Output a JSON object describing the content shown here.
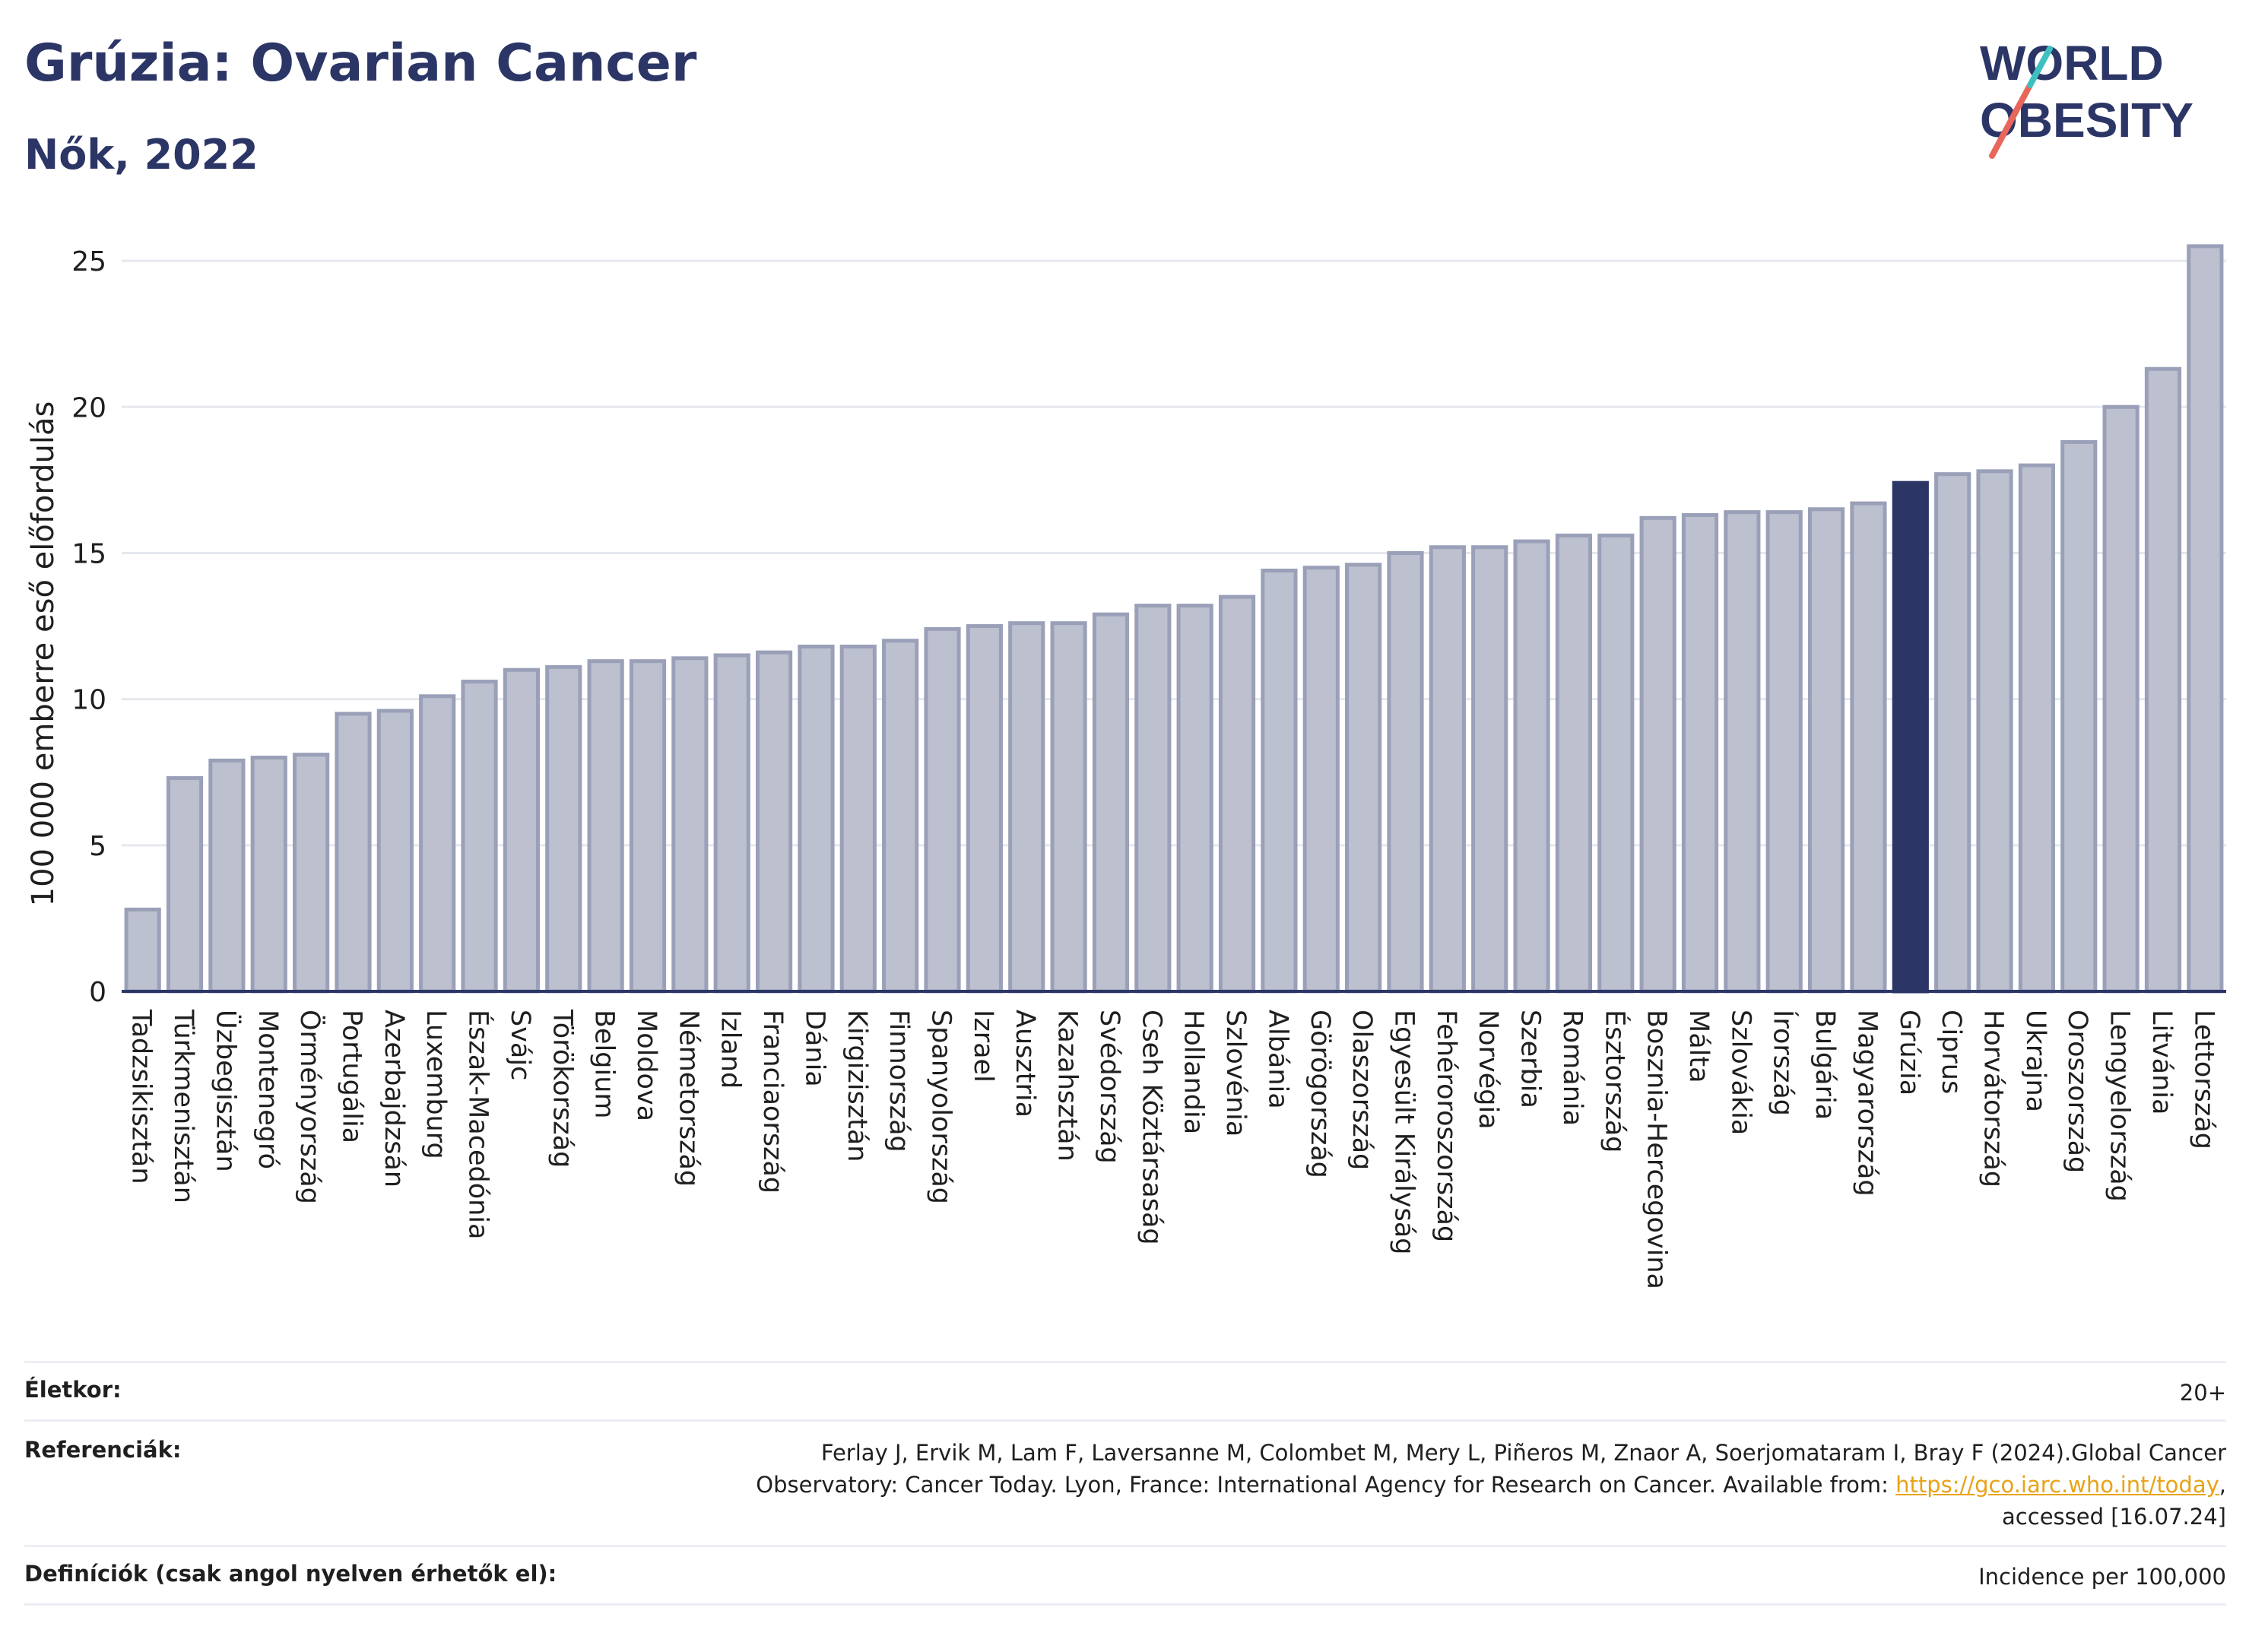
{
  "header": {
    "title": "Grúzia: Ovarian Cancer",
    "subtitle": "Nők, 2022"
  },
  "logo": {
    "line1": "WORLD",
    "line2": "OBESITY",
    "accent_colors": [
      "#e8665a",
      "#3ec0c0"
    ]
  },
  "colors": {
    "bar": "#bcc0cf",
    "bar_edge": "#9aa0b8",
    "highlight": "#2b3566",
    "axis_text": "#1f1f1f",
    "grid": "#e6e8ef"
  },
  "chart_data": {
    "type": "bar",
    "title": "",
    "ylabel": "100 000 emberre eső előfordulás",
    "ylim": [
      0,
      25.6
    ],
    "yticks": [
      0,
      5,
      10,
      15,
      20,
      25
    ],
    "highlight": "Grúzia",
    "grid": true,
    "categories": [
      "Tadzsikisztán",
      "Türkmenisztán",
      "Üzbegisztán",
      "Montenegró",
      "Örményország",
      "Portugália",
      "Azerbajdzsán",
      "Luxemburg",
      "Észak-Macedónia",
      "Svájc",
      "Törökország",
      "Belgium",
      "Moldova",
      "Németország",
      "Izland",
      "Franciaország",
      "Dánia",
      "Kirgizisztán",
      "Finnország",
      "Spanyolország",
      "Izrael",
      "Ausztria",
      "Kazahsztán",
      "Svédország",
      "Cseh Köztársaság",
      "Hollandia",
      "Szlovénia",
      "Albánia",
      "Görögország",
      "Olaszország",
      "Egyesült Királyság",
      "Fehéroroszország",
      "Norvégia",
      "Szerbia",
      "Románia",
      "Észtország",
      "Bosznia-Hercegovina",
      "Málta",
      "Szlovákia",
      "Írország",
      "Bulgária",
      "Magyarország",
      "Grúzia",
      "Ciprus",
      "Horvátország",
      "Ukrajna",
      "Oroszország",
      "Lengyelország",
      "Litvánia",
      "Lettország"
    ],
    "values": [
      2.8,
      7.3,
      7.9,
      8.0,
      8.1,
      9.5,
      9.6,
      10.1,
      10.6,
      11.0,
      11.1,
      11.3,
      11.3,
      11.4,
      11.5,
      11.6,
      11.8,
      11.8,
      12.0,
      12.4,
      12.5,
      12.6,
      12.6,
      12.9,
      13.2,
      13.2,
      13.5,
      14.4,
      14.5,
      14.6,
      15.0,
      15.2,
      15.2,
      15.4,
      15.6,
      15.6,
      16.2,
      16.3,
      16.4,
      16.4,
      16.5,
      16.7,
      17.4,
      17.7,
      17.8,
      18.0,
      18.8,
      20.0,
      21.3,
      25.5
    ]
  },
  "footer": {
    "age_label": "Életkor:",
    "age_value": "20+",
    "ref_label": "Referenciák:",
    "ref_text_1": "Ferlay J, Ervik M, Lam F, Laversanne M, Colombet M, Mery L, Piñeros M, Znaor A, Soerjomataram I, Bray F (2024).Global Cancer",
    "ref_text_2": "Observatory: Cancer Today. Lyon, France: International Agency for Research on Cancer. Available from: ",
    "ref_link": "https://gco.iarc.who.int/today",
    "ref_text_3": ",",
    "ref_text_4": "accessed [16.07.24]",
    "def_label": "Definíciók (csak angol nyelven érhetők el):",
    "def_value": "Incidence per 100,000"
  }
}
